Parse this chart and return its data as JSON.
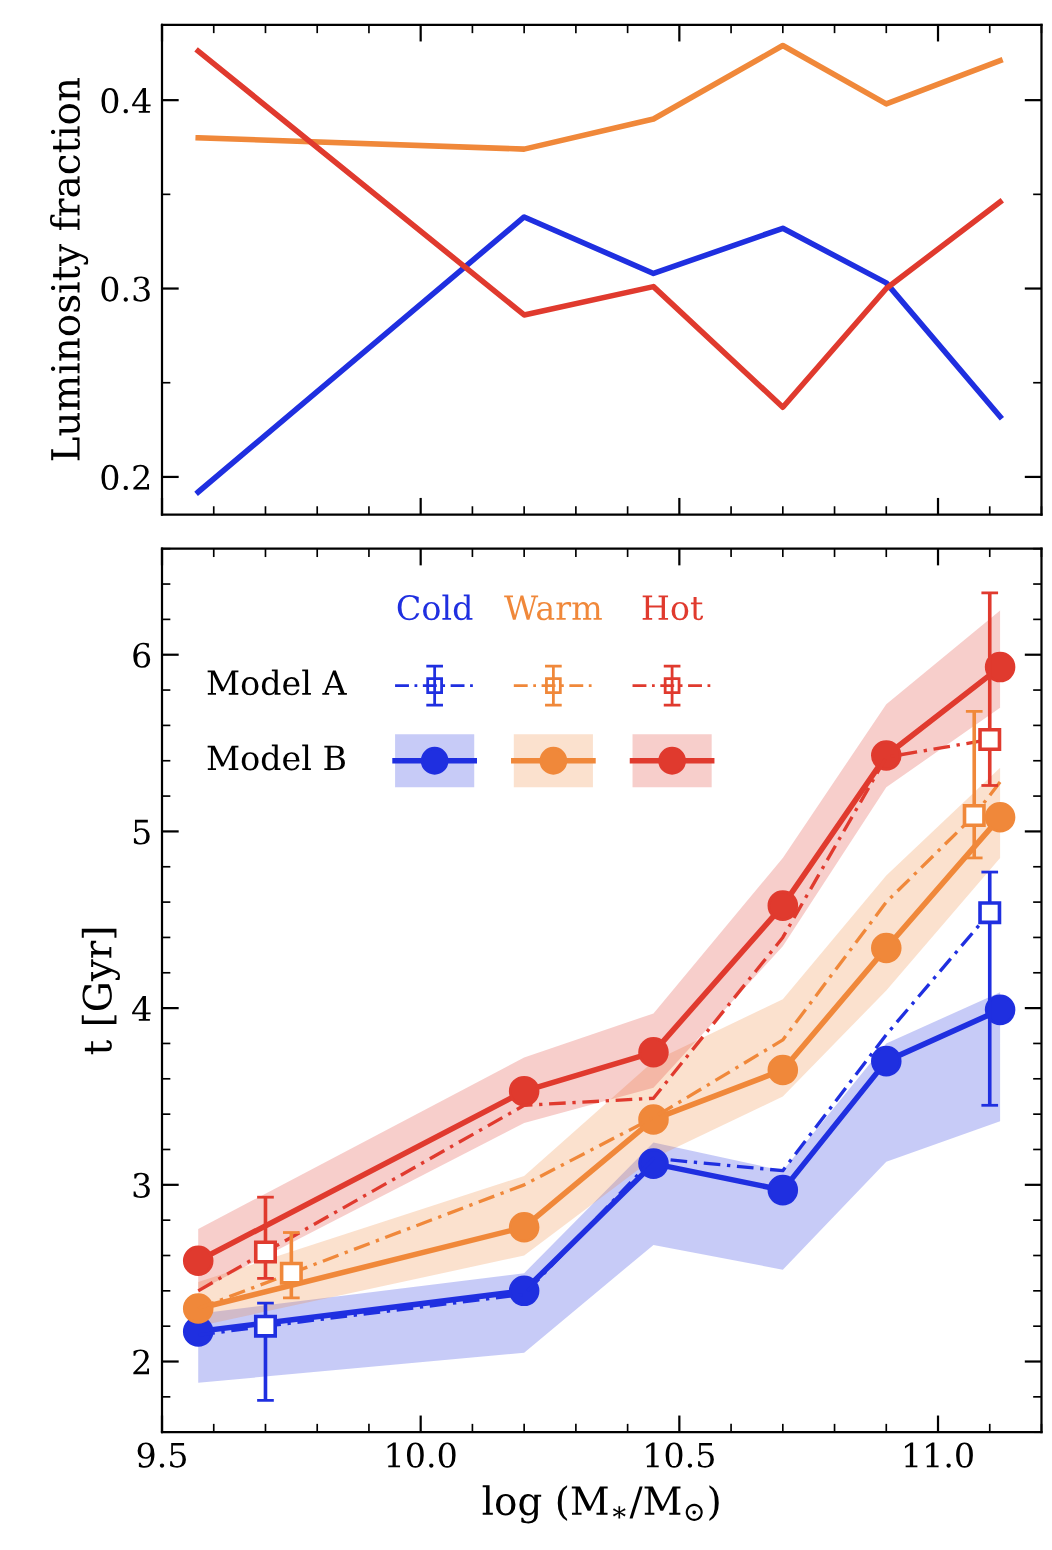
{
  "chart_data": [
    {
      "type": "line",
      "ylabel": "Luminosity fraction",
      "xlim": [
        9.5,
        11.2
      ],
      "xticks": [
        9.5,
        10.0,
        10.5,
        11.0
      ],
      "ylim": [
        0.18,
        0.44
      ],
      "yticks": [
        0.2,
        0.3,
        0.4
      ],
      "tick_labels": "y",
      "grid": false,
      "legend": false,
      "marker": "none",
      "line_style": "solid",
      "x": [
        9.57,
        10.2,
        10.45,
        10.7,
        10.9,
        11.12
      ],
      "series": [
        {
          "color": "#1f2fe0",
          "values": [
            0.192,
            0.338,
            0.308,
            0.332,
            0.303,
            0.232
          ]
        },
        {
          "color": "#f0883a",
          "values": [
            0.38,
            0.374,
            0.39,
            0.429,
            0.398,
            0.421
          ]
        },
        {
          "color": "#e03a2e",
          "values": [
            0.426,
            0.286,
            0.301,
            0.237,
            0.3,
            0.346
          ]
        }
      ]
    },
    {
      "type": "line",
      "xlabel": "log (M$_{∗}$/M$_{⊙}$)",
      "ylabel": "t [Gyr]",
      "xlim": [
        9.5,
        11.2
      ],
      "xticks": [
        9.5,
        {
          "value": 10,
          "label": "10.0"
        },
        10.5,
        {
          "value": 11,
          "label": "11.0"
        }
      ],
      "ylim": [
        1.6,
        6.6
      ],
      "yticks": [
        2,
        3,
        4,
        5,
        6
      ],
      "grid": false,
      "legend": "top left",
      "annotations": [
        "Model A",
        "Model B"
      ],
      "series": [
        {
          "name": "Cold",
          "color": "#1f2fe0",
          "marker": "circle",
          "line_style": "solid",
          "x": [
            9.57,
            10.2,
            10.45,
            10.7,
            10.9,
            11.12
          ],
          "values": [
            2.17,
            2.4,
            3.12,
            2.97,
            3.7,
            3.99
          ],
          "lower": [
            1.88,
            2.05,
            2.66,
            2.52,
            3.13,
            3.36
          ],
          "upper": [
            2.27,
            2.5,
            3.24,
            3.08,
            3.8,
            4.09
          ]
        },
        {
          "name": "Warm",
          "color": "#f0883a",
          "marker": "circle",
          "line_style": "solid",
          "x": [
            9.57,
            10.2,
            10.45,
            10.7,
            10.9,
            11.12
          ],
          "values": [
            2.3,
            2.76,
            3.37,
            3.65,
            4.34,
            5.08
          ],
          "lower": [
            2.2,
            2.6,
            3.15,
            3.5,
            4.1,
            4.85
          ],
          "upper": [
            2.45,
            3.05,
            3.7,
            4.05,
            4.75,
            5.36
          ]
        },
        {
          "name": "Hot",
          "color": "#e03a2e",
          "marker": "circle",
          "line_style": "solid",
          "x": [
            9.57,
            10.2,
            10.45,
            10.7,
            10.9,
            11.12
          ],
          "values": [
            2.57,
            3.53,
            3.75,
            4.58,
            5.43,
            5.93
          ],
          "lower": [
            2.4,
            3.35,
            3.55,
            4.35,
            5.25,
            5.7
          ],
          "upper": [
            2.75,
            3.72,
            3.97,
            4.85,
            5.72,
            6.25
          ]
        },
        {
          "color": "#1f2fe0",
          "marker": "none",
          "line_style": "dashed",
          "x": [
            9.57,
            9.7,
            10.2,
            10.45,
            10.7,
            10.9,
            11.1
          ],
          "values": [
            2.15,
            2.2,
            2.38,
            3.15,
            3.08,
            3.85,
            4.54
          ]
        },
        {
          "color": "#f0883a",
          "marker": "none",
          "line_style": "dashed",
          "x": [
            9.57,
            9.75,
            10.2,
            10.45,
            10.7,
            10.9,
            11.07,
            11.12
          ],
          "values": [
            2.3,
            2.5,
            3.0,
            3.38,
            3.82,
            4.6,
            5.09,
            5.28
          ]
        },
        {
          "color": "#e03a2e",
          "marker": "none",
          "line_style": "dashed",
          "x": [
            9.57,
            9.7,
            10.2,
            10.45,
            10.7,
            10.9,
            11.1
          ],
          "values": [
            2.4,
            2.62,
            3.45,
            3.49,
            4.4,
            5.42,
            5.52
          ]
        },
        {
          "type": "scatter",
          "color": "#1f2fe0",
          "marker": "square",
          "x": [
            9.7,
            11.1
          ],
          "values": [
            2.2,
            4.54
          ],
          "errors": [
            [
              1.78,
              2.33
            ],
            [
              3.45,
              4.77
            ]
          ]
        },
        {
          "type": "scatter",
          "color": "#f0883a",
          "marker": "square",
          "x": [
            9.75,
            11.07
          ],
          "values": [
            2.5,
            5.09
          ],
          "errors": [
            [
              2.36,
              2.73
            ],
            [
              4.85,
              5.68
            ]
          ]
        },
        {
          "type": "scatter",
          "color": "#e03a2e",
          "marker": "square",
          "x": [
            9.7,
            11.1
          ],
          "values": [
            2.62,
            5.52
          ],
          "errors": [
            [
              2.47,
              2.93
            ],
            [
              5.26,
              6.35
            ]
          ]
        }
      ]
    }
  ]
}
